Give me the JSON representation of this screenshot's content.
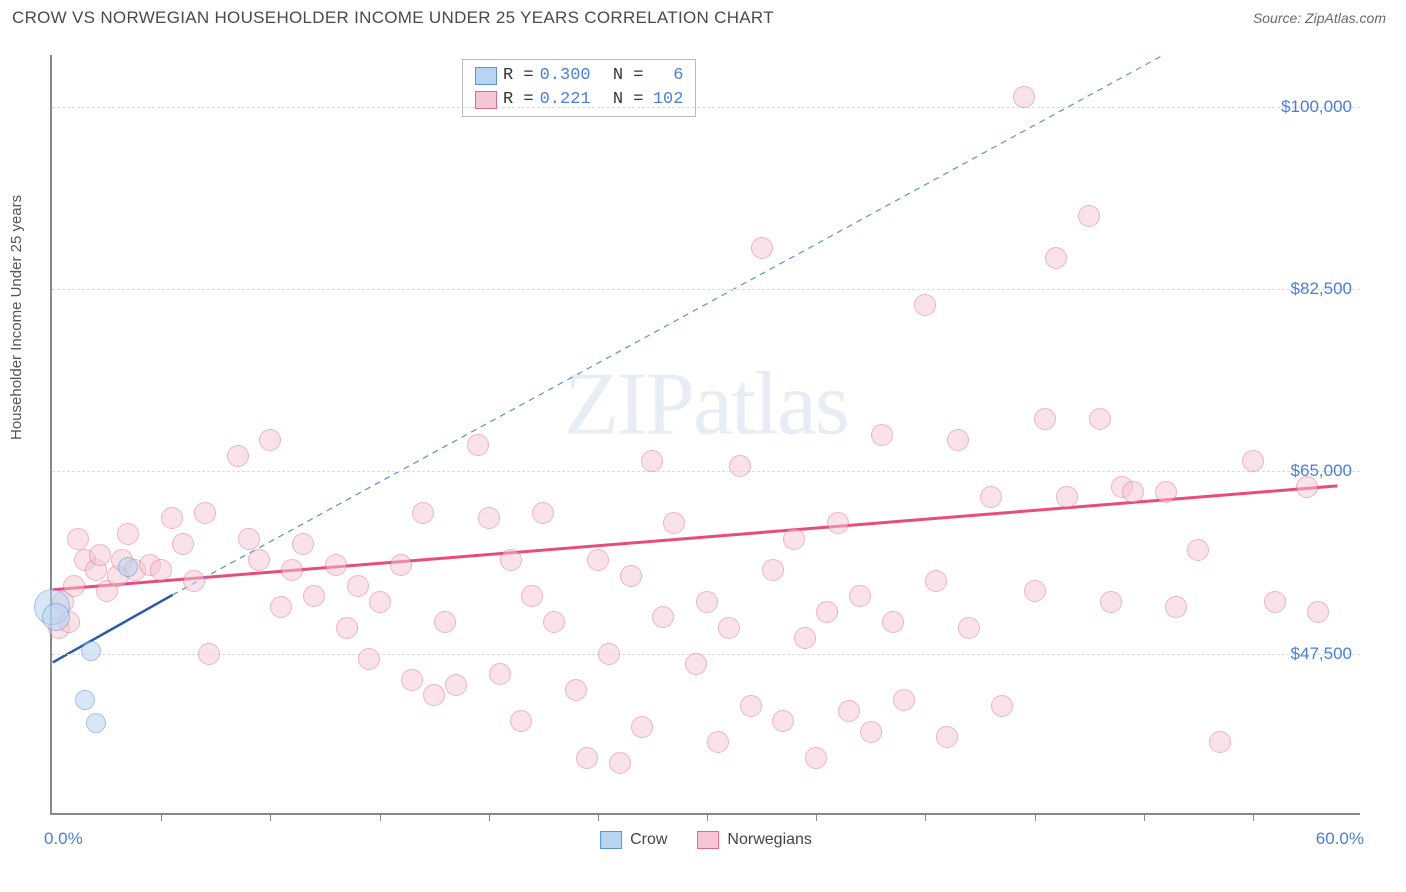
{
  "title": "CROW VS NORWEGIAN HOUSEHOLDER INCOME UNDER 25 YEARS CORRELATION CHART",
  "source": "Source: ZipAtlas.com",
  "ylabel": "Householder Income Under 25 years",
  "watermark": "ZIPatlas",
  "chart": {
    "type": "scatter",
    "background_color": "#ffffff",
    "grid_color": "#dcdcdc",
    "axis_color": "#888888",
    "xlim": [
      0,
      60
    ],
    "ylim": [
      32000,
      105000
    ],
    "yticks": [
      {
        "v": 47500,
        "label": "$47,500"
      },
      {
        "v": 65000,
        "label": "$65,000"
      },
      {
        "v": 82500,
        "label": "$82,500"
      },
      {
        "v": 100000,
        "label": "$100,000"
      }
    ],
    "xtick_positions": [
      5,
      10,
      15,
      20,
      25,
      30,
      35,
      40,
      45,
      50,
      55
    ],
    "xaxis_min_label": "0.0%",
    "xaxis_max_label": "60.0%",
    "label_color": "#4a7fd6",
    "label_fontsize": 17,
    "title_color": "#4a4a4a",
    "point_radius": 11,
    "point_stroke_width": 1.5
  },
  "series_crow": {
    "name": "Crow",
    "fill": "#b8d4f0",
    "stroke": "#5a94d6",
    "fill_opacity": 0.55,
    "R": "0.300",
    "N": "6",
    "points": [
      {
        "x": 0.0,
        "y": 52000,
        "r": 18
      },
      {
        "x": 0.2,
        "y": 51000,
        "r": 14
      },
      {
        "x": 1.8,
        "y": 47800,
        "r": 10
      },
      {
        "x": 1.5,
        "y": 43000,
        "r": 10
      },
      {
        "x": 2.0,
        "y": 40800,
        "r": 10
      },
      {
        "x": 3.5,
        "y": 55800,
        "r": 10
      }
    ],
    "trend": {
      "x1": 0,
      "y1": 46500,
      "x2": 5.5,
      "y2": 53000,
      "color": "#2a5aa8",
      "width": 2.5,
      "dash": "none"
    },
    "extrap": {
      "x1": 5.5,
      "y1": 53000,
      "x2": 51,
      "y2": 105000,
      "color": "#5a94d6",
      "width": 1.2,
      "dash": "6,5"
    }
  },
  "series_norw": {
    "name": "Norwegians",
    "fill": "#f6c6d4",
    "stroke": "#e06a8e",
    "fill_opacity": 0.5,
    "R": "0.221",
    "N": "102",
    "points": [
      {
        "x": 0.5,
        "y": 52500
      },
      {
        "x": 0.3,
        "y": 50000
      },
      {
        "x": 0.8,
        "y": 50500
      },
      {
        "x": 1.0,
        "y": 54000
      },
      {
        "x": 1.5,
        "y": 56500
      },
      {
        "x": 1.2,
        "y": 58500
      },
      {
        "x": 2.0,
        "y": 55500
      },
      {
        "x": 2.5,
        "y": 53500
      },
      {
        "x": 2.2,
        "y": 57000
      },
      {
        "x": 3.0,
        "y": 55000
      },
      {
        "x": 3.2,
        "y": 56500
      },
      {
        "x": 3.8,
        "y": 55500
      },
      {
        "x": 3.5,
        "y": 59000
      },
      {
        "x": 4.5,
        "y": 56000
      },
      {
        "x": 5.0,
        "y": 55500
      },
      {
        "x": 5.5,
        "y": 60500
      },
      {
        "x": 6.0,
        "y": 58000
      },
      {
        "x": 6.5,
        "y": 54500
      },
      {
        "x": 7.0,
        "y": 61000
      },
      {
        "x": 7.2,
        "y": 47500
      },
      {
        "x": 8.5,
        "y": 66500
      },
      {
        "x": 9.0,
        "y": 58500
      },
      {
        "x": 9.5,
        "y": 56500
      },
      {
        "x": 10.0,
        "y": 68000
      },
      {
        "x": 10.5,
        "y": 52000
      },
      {
        "x": 11.0,
        "y": 55500
      },
      {
        "x": 11.5,
        "y": 58000
      },
      {
        "x": 12.0,
        "y": 53000
      },
      {
        "x": 13.0,
        "y": 56000
      },
      {
        "x": 13.5,
        "y": 50000
      },
      {
        "x": 14.0,
        "y": 54000
      },
      {
        "x": 14.5,
        "y": 47000
      },
      {
        "x": 15.0,
        "y": 52500
      },
      {
        "x": 16.0,
        "y": 56000
      },
      {
        "x": 16.5,
        "y": 45000
      },
      {
        "x": 17.0,
        "y": 61000
      },
      {
        "x": 17.5,
        "y": 43500
      },
      {
        "x": 18.0,
        "y": 50500
      },
      {
        "x": 18.5,
        "y": 44500
      },
      {
        "x": 19.5,
        "y": 67500
      },
      {
        "x": 20.0,
        "y": 60500
      },
      {
        "x": 20.5,
        "y": 45500
      },
      {
        "x": 21.0,
        "y": 56500
      },
      {
        "x": 21.5,
        "y": 41000
      },
      {
        "x": 22.0,
        "y": 53000
      },
      {
        "x": 22.5,
        "y": 61000
      },
      {
        "x": 23.0,
        "y": 50500
      },
      {
        "x": 24.0,
        "y": 44000
      },
      {
        "x": 24.5,
        "y": 37500
      },
      {
        "x": 25.0,
        "y": 56500
      },
      {
        "x": 25.5,
        "y": 47500
      },
      {
        "x": 26.0,
        "y": 37000
      },
      {
        "x": 26.5,
        "y": 55000
      },
      {
        "x": 27.0,
        "y": 40500
      },
      {
        "x": 27.5,
        "y": 66000
      },
      {
        "x": 28.0,
        "y": 51000
      },
      {
        "x": 28.5,
        "y": 60000
      },
      {
        "x": 29.5,
        "y": 46500
      },
      {
        "x": 30.0,
        "y": 52500
      },
      {
        "x": 30.5,
        "y": 39000
      },
      {
        "x": 31.0,
        "y": 50000
      },
      {
        "x": 31.5,
        "y": 65500
      },
      {
        "x": 32.0,
        "y": 42500
      },
      {
        "x": 32.5,
        "y": 86500
      },
      {
        "x": 33.0,
        "y": 55500
      },
      {
        "x": 33.5,
        "y": 41000
      },
      {
        "x": 34.0,
        "y": 58500
      },
      {
        "x": 34.5,
        "y": 49000
      },
      {
        "x": 35.0,
        "y": 37500
      },
      {
        "x": 35.5,
        "y": 51500
      },
      {
        "x": 36.0,
        "y": 60000
      },
      {
        "x": 36.5,
        "y": 42000
      },
      {
        "x": 37.0,
        "y": 53000
      },
      {
        "x": 37.5,
        "y": 40000
      },
      {
        "x": 38.0,
        "y": 68500
      },
      {
        "x": 38.5,
        "y": 50500
      },
      {
        "x": 39.0,
        "y": 43000
      },
      {
        "x": 40.0,
        "y": 81000
      },
      {
        "x": 40.5,
        "y": 54500
      },
      {
        "x": 41.0,
        "y": 39500
      },
      {
        "x": 41.5,
        "y": 68000
      },
      {
        "x": 42.0,
        "y": 50000
      },
      {
        "x": 43.0,
        "y": 62500
      },
      {
        "x": 43.5,
        "y": 42500
      },
      {
        "x": 44.5,
        "y": 101000
      },
      {
        "x": 45.0,
        "y": 53500
      },
      {
        "x": 45.5,
        "y": 70000
      },
      {
        "x": 46.0,
        "y": 85500
      },
      {
        "x": 46.5,
        "y": 62500
      },
      {
        "x": 47.5,
        "y": 89500
      },
      {
        "x": 48.0,
        "y": 70000
      },
      {
        "x": 48.5,
        "y": 52500
      },
      {
        "x": 49.0,
        "y": 63500
      },
      {
        "x": 49.5,
        "y": 63000
      },
      {
        "x": 51.0,
        "y": 63000
      },
      {
        "x": 51.5,
        "y": 52000
      },
      {
        "x": 52.5,
        "y": 57500
      },
      {
        "x": 53.5,
        "y": 39000
      },
      {
        "x": 55.0,
        "y": 66000
      },
      {
        "x": 56.0,
        "y": 52500
      },
      {
        "x": 57.5,
        "y": 63500
      },
      {
        "x": 58.0,
        "y": 51500
      }
    ],
    "trend": {
      "x1": 0,
      "y1": 53500,
      "x2": 59,
      "y2": 63500,
      "color": "#e94b7a",
      "width": 3,
      "dash": "none"
    }
  },
  "legend": {
    "r_label": "R =",
    "n_label": "N ="
  },
  "bottom_legend": {
    "crow": "Crow",
    "norwegians": "Norwegians"
  }
}
